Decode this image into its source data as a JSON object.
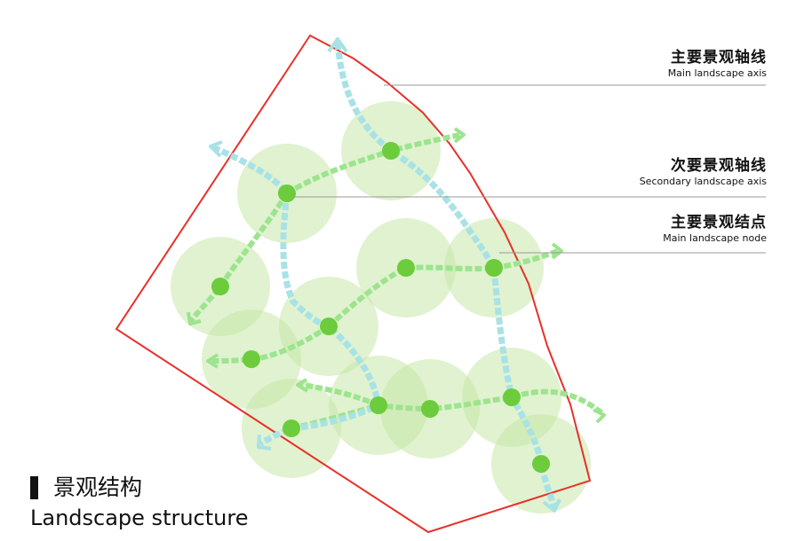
{
  "colors": {
    "boundary": "#e8302a",
    "circle_fill": "#c6e7a8",
    "node": "#6ccc3c",
    "main_axis": "#a8e2e6",
    "secondary_axis": "#9ce48e",
    "leader": "#9a9a9a"
  },
  "legend": {
    "main_axis": {
      "zh": "主要景观轴线",
      "en": "Main landscape axis"
    },
    "secondary_axis": {
      "zh": "次要景观轴线",
      "en": "Secondary landscape axis"
    },
    "main_node": {
      "zh": "主要景观结点",
      "en": "Main landscape node"
    }
  },
  "title": {
    "zh": "景观结构",
    "en": "Landscape structure"
  }
}
